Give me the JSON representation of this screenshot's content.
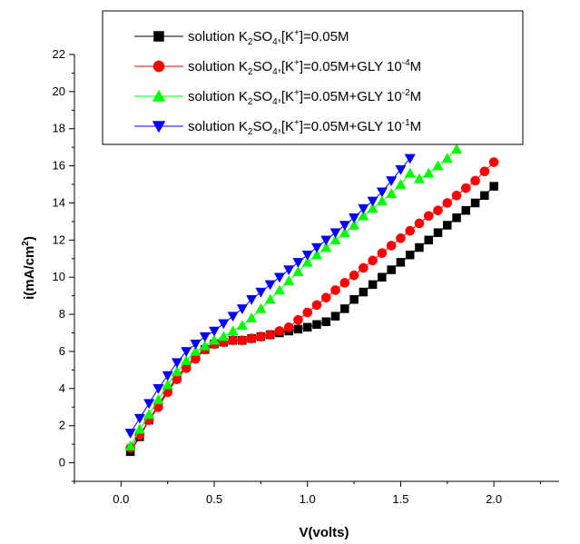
{
  "chart_data": {
    "type": "line",
    "xlabel": "V(volts)",
    "ylabel_parts": {
      "main": "i(mA/cm",
      "sup": "2",
      "close": ")"
    },
    "xlim": [
      -0.25,
      2.35
    ],
    "ylim": [
      -1,
      22
    ],
    "x_ticks": [
      "0.0",
      "0.5",
      "1.0",
      "1.5",
      "2.0"
    ],
    "x_tick_values": [
      0.0,
      0.5,
      1.0,
      1.5,
      2.0
    ],
    "y_ticks": [
      "0",
      "2",
      "4",
      "6",
      "8",
      "10",
      "12",
      "14",
      "16",
      "18",
      "20",
      "22"
    ],
    "y_tick_values": [
      0,
      2,
      4,
      6,
      8,
      10,
      12,
      14,
      16,
      18,
      20,
      22
    ],
    "legend_placement": "top-right",
    "series": [
      {
        "name_parts": {
          "a": "solution K",
          "sub1": "2",
          "b": "SO",
          "sub2": "4",
          "c": ",[K",
          "sup1": "+",
          "d": "]=0.05M",
          "sup2": "",
          "e": ""
        },
        "color": "#000000",
        "marker": "square",
        "x": [
          0.05,
          0.1,
          0.15,
          0.2,
          0.25,
          0.3,
          0.35,
          0.4,
          0.45,
          0.5,
          0.55,
          0.6,
          0.65,
          0.7,
          0.75,
          0.8,
          0.85,
          0.9,
          0.95,
          1.0,
          1.05,
          1.1,
          1.15,
          1.2,
          1.25,
          1.3,
          1.35,
          1.4,
          1.45,
          1.5,
          1.55,
          1.6,
          1.65,
          1.7,
          1.75,
          1.8,
          1.85,
          1.9,
          1.95,
          2.0
        ],
        "y": [
          0.6,
          1.4,
          2.3,
          3.1,
          3.9,
          4.6,
          5.2,
          5.7,
          6.1,
          6.4,
          6.5,
          6.6,
          6.6,
          6.7,
          6.8,
          6.9,
          7.0,
          7.1,
          7.2,
          7.3,
          7.45,
          7.6,
          7.9,
          8.3,
          8.8,
          9.2,
          9.6,
          10.0,
          10.4,
          10.8,
          11.2,
          11.6,
          12.0,
          12.4,
          12.8,
          13.2,
          13.6,
          14.0,
          14.4,
          14.9
        ]
      },
      {
        "name_parts": {
          "a": "solution K",
          "sub1": "2",
          "b": "SO",
          "sub2": "4",
          "c": ",[K",
          "sup1": "+",
          "d": "]=0.05M+GLY 10",
          "sup2": "-4",
          "e": "M"
        },
        "color": "#ff0000",
        "marker": "circle",
        "x": [
          0.05,
          0.1,
          0.15,
          0.2,
          0.25,
          0.3,
          0.35,
          0.4,
          0.45,
          0.5,
          0.55,
          0.6,
          0.65,
          0.7,
          0.75,
          0.8,
          0.85,
          0.9,
          0.95,
          1.0,
          1.05,
          1.1,
          1.15,
          1.2,
          1.25,
          1.3,
          1.35,
          1.4,
          1.45,
          1.5,
          1.55,
          1.6,
          1.65,
          1.7,
          1.75,
          1.8,
          1.85,
          1.9,
          1.95,
          2.0
        ],
        "y": [
          0.8,
          1.5,
          2.3,
          3.0,
          3.8,
          4.5,
          5.1,
          5.6,
          6.1,
          6.4,
          6.5,
          6.6,
          6.6,
          6.7,
          6.8,
          6.9,
          7.1,
          7.3,
          7.7,
          8.1,
          8.5,
          8.9,
          9.3,
          9.7,
          10.1,
          10.5,
          10.9,
          11.3,
          11.7,
          12.1,
          12.5,
          12.9,
          13.3,
          13.6,
          14.0,
          14.4,
          14.8,
          15.2,
          15.7,
          16.2
        ]
      },
      {
        "name_parts": {
          "a": "solution K",
          "sub1": "2",
          "b": "SO",
          "sub2": "4",
          "c": ",[K",
          "sup1": "+",
          "d": "]=0.05M+GLY 10",
          "sup2": "-2",
          "e": "M"
        },
        "color": "#00ff00",
        "marker": "triangle-up",
        "x": [
          0.05,
          0.1,
          0.15,
          0.2,
          0.25,
          0.3,
          0.35,
          0.4,
          0.45,
          0.5,
          0.55,
          0.6,
          0.65,
          0.7,
          0.75,
          0.8,
          0.85,
          0.9,
          0.95,
          1.0,
          1.05,
          1.1,
          1.15,
          1.2,
          1.25,
          1.3,
          1.35,
          1.4,
          1.45,
          1.5,
          1.55,
          1.6,
          1.65,
          1.7,
          1.75,
          1.8
        ],
        "y": [
          0.9,
          1.8,
          2.6,
          3.4,
          4.2,
          4.9,
          5.5,
          6.0,
          6.3,
          6.6,
          6.8,
          7.1,
          7.4,
          7.8,
          8.3,
          8.8,
          9.3,
          9.8,
          10.3,
          10.8,
          11.2,
          11.6,
          12.0,
          12.4,
          12.8,
          13.3,
          13.7,
          14.1,
          14.5,
          15.0,
          15.6,
          15.3,
          15.6,
          16.0,
          16.4,
          16.9
        ]
      },
      {
        "name_parts": {
          "a": "solution K",
          "sub1": "2",
          "b": "SO",
          "sub2": "4",
          "c": ",[K",
          "sup1": "+",
          "d": "]=0.05M+GLY 10",
          "sup2": "-1",
          "e": "M"
        },
        "color": "#0000ff",
        "marker": "triangle-down",
        "x": [
          0.05,
          0.1,
          0.15,
          0.2,
          0.25,
          0.3,
          0.35,
          0.4,
          0.45,
          0.5,
          0.55,
          0.6,
          0.65,
          0.7,
          0.75,
          0.8,
          0.85,
          0.9,
          0.95,
          1.0,
          1.05,
          1.1,
          1.15,
          1.2,
          1.25,
          1.3,
          1.35,
          1.4,
          1.45,
          1.5,
          1.55
        ],
        "y": [
          1.6,
          2.4,
          3.2,
          4.0,
          4.7,
          5.4,
          6.0,
          6.4,
          6.8,
          7.1,
          7.5,
          7.9,
          8.3,
          8.8,
          9.2,
          9.6,
          10.0,
          10.4,
          10.8,
          11.2,
          11.6,
          12.0,
          12.4,
          12.8,
          13.2,
          13.7,
          14.1,
          14.6,
          15.2,
          15.8,
          16.4
        ]
      }
    ]
  }
}
